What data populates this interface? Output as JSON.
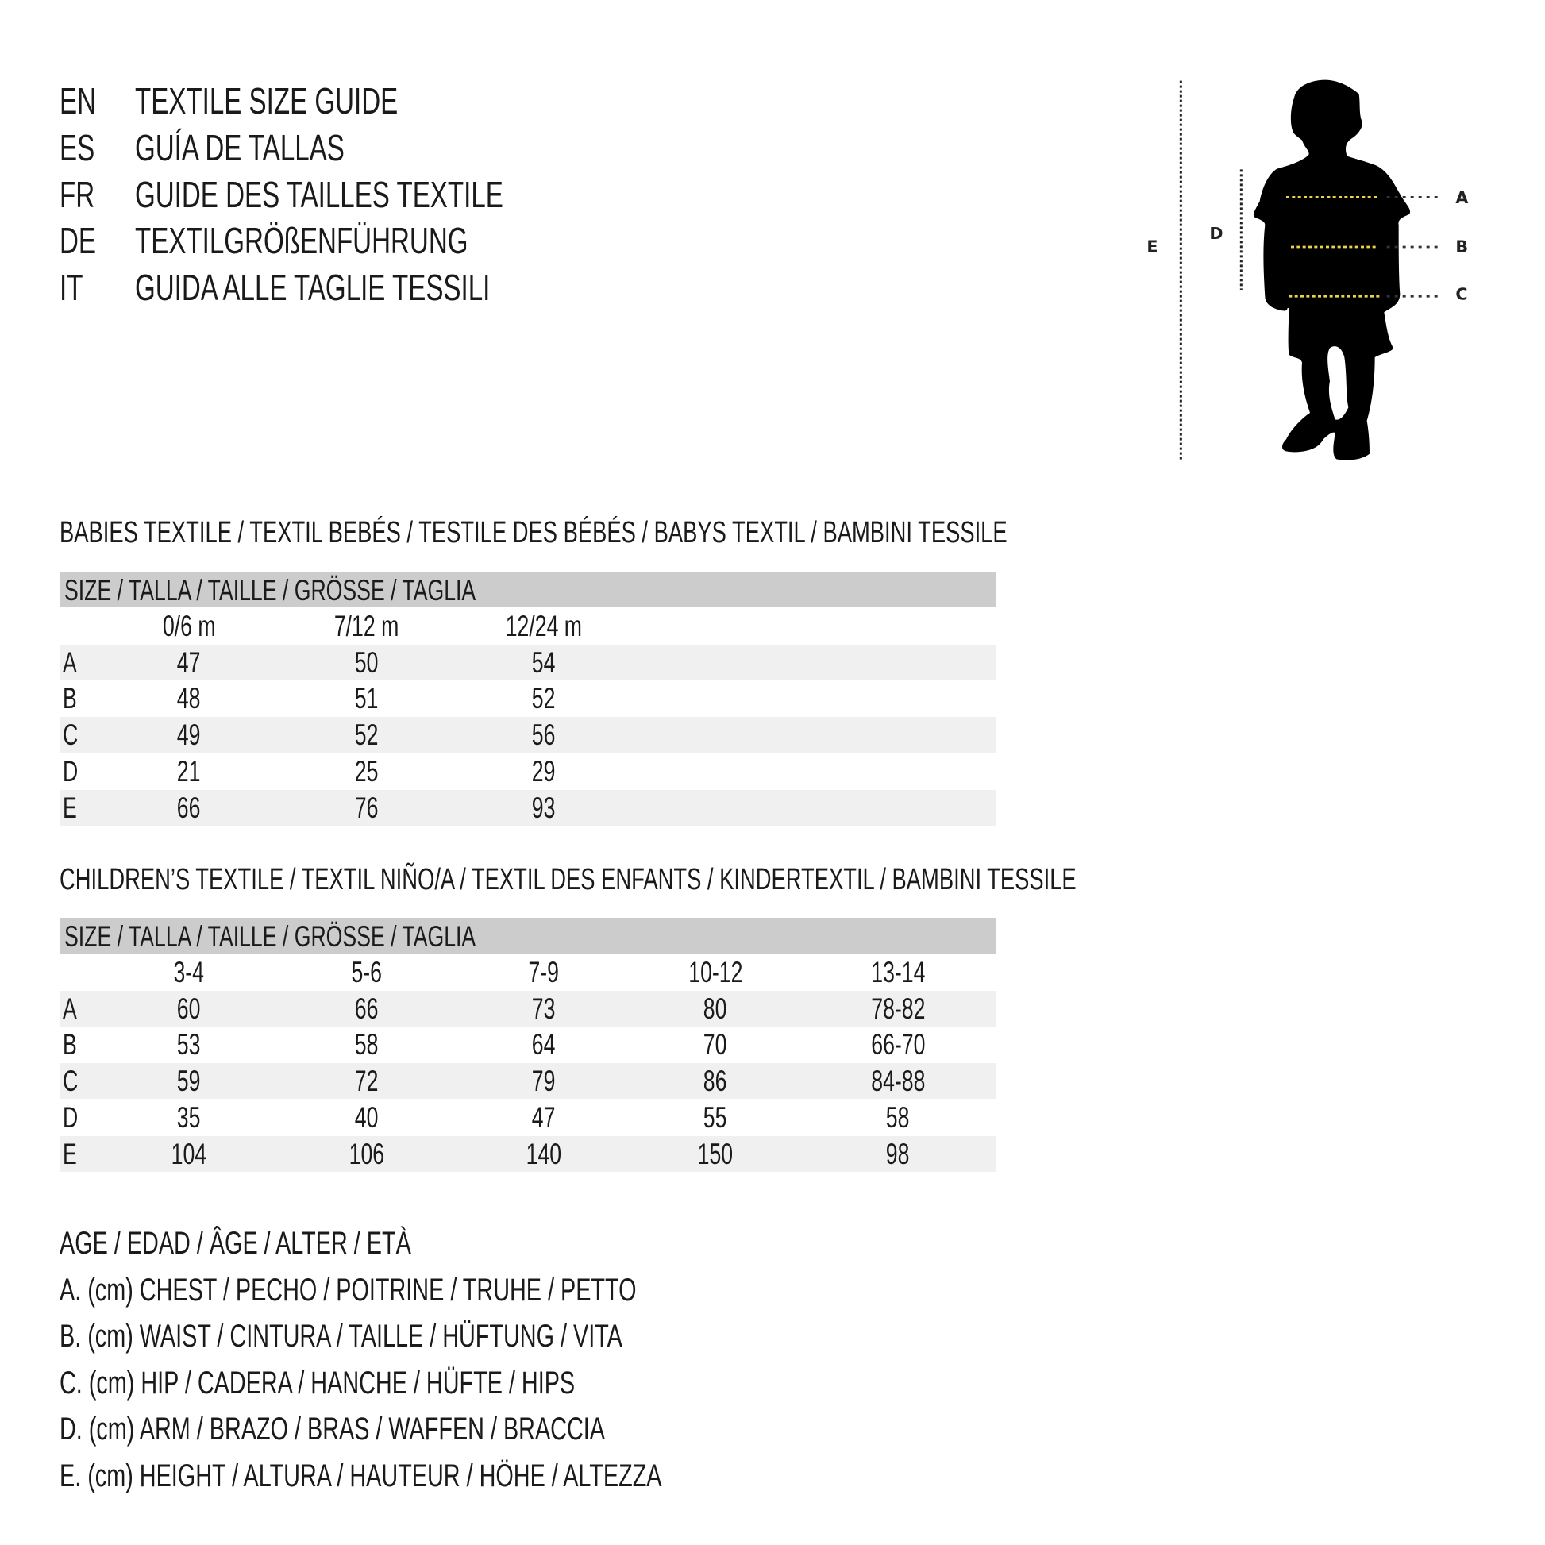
{
  "header": {
    "lines": [
      {
        "code": "EN",
        "text": "TEXTILE SIZE GUIDE"
      },
      {
        "code": "ES",
        "text": "GUÍA DE TALLAS"
      },
      {
        "code": "FR",
        "text": "GUIDE DES TAILLES TEXTILE"
      },
      {
        "code": "DE",
        "text": "TEXTILGRÖßENFÜHRUNG"
      },
      {
        "code": "IT",
        "text": "GUIDA ALLE TAGLIE TESSILI"
      }
    ]
  },
  "figure": {
    "labels": {
      "a": "A",
      "b": "B",
      "c": "C",
      "d": "D",
      "e": "E"
    },
    "colors": {
      "silhouette": "#000000",
      "measure_line": "#e8d44a",
      "guide_line": "#333333"
    }
  },
  "babies": {
    "title": "BABIES TEXTILE / TEXTIL BEBÉS / TESTILE DES BÉBÉS / BABYS TEXTIL / BAMBINI TESSILE",
    "size_header": "SIZE / TALLA / TAILLE / GRÖSSE / TAGLIA",
    "columns": [
      "0/6 m",
      "7/12 m",
      "12/24 m"
    ],
    "rows": [
      {
        "label": "A",
        "values": [
          "47",
          "50",
          "54"
        ]
      },
      {
        "label": "B",
        "values": [
          "48",
          "51",
          "52"
        ]
      },
      {
        "label": "C",
        "values": [
          "49",
          "52",
          "56"
        ]
      },
      {
        "label": "D",
        "values": [
          "21",
          "25",
          "29"
        ]
      },
      {
        "label": "E",
        "values": [
          "66",
          "76",
          "93"
        ]
      }
    ]
  },
  "children": {
    "title": "CHILDREN’S TEXTILE / TEXTIL NIÑO/A / TEXTIL DES ENFANTS / KINDERTEXTIL / BAMBINI TESSILE",
    "size_header": "SIZE / TALLA / TAILLE / GRÖSSE / TAGLIA",
    "columns": [
      "3-4",
      "5-6",
      "7-9",
      "10-12",
      "13-14"
    ],
    "rows": [
      {
        "label": "A",
        "values": [
          "60",
          "66",
          "73",
          "80",
          "78-82"
        ]
      },
      {
        "label": "B",
        "values": [
          "53",
          "58",
          "64",
          "70",
          "66-70"
        ]
      },
      {
        "label": "C",
        "values": [
          "59",
          "72",
          "79",
          "86",
          "84-88"
        ]
      },
      {
        "label": "D",
        "values": [
          "35",
          "40",
          "47",
          "55",
          "58"
        ]
      },
      {
        "label": "E",
        "values": [
          "104",
          "106",
          "140",
          "150",
          "98"
        ]
      }
    ]
  },
  "legend": [
    "AGE / EDAD / ÂGE / ALTER / ETÀ",
    "A. (cm) CHEST / PECHO / POITRINE / TRUHE / PETTO",
    "B. (cm) WAIST / CINTURA / TAILLE / HÜFTUNG / VITA",
    "C. (cm) HIP / CADERA / HANCHE / HÜFTE / HIPS",
    "D. (cm) ARM / BRAZO / BRAS / WAFFEN / BRACCIA",
    "E. (cm) HEIGHT / ALTURA / HAUTEUR / HÖHE / ALTEZZA"
  ]
}
